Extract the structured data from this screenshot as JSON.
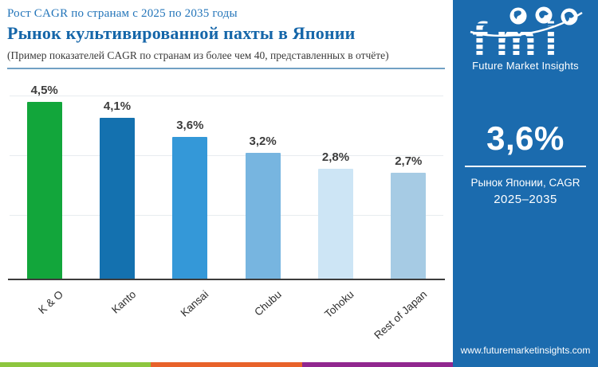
{
  "header": {
    "subtitle": "Рост CAGR по странам с 2025 по 2035 годы",
    "title": "Рынок культивированной пахты в Японии",
    "note": "(Пример показателей CAGR по странам из более чем 40, представленных в отчёте)"
  },
  "chart_data": {
    "type": "bar",
    "categories": [
      "K & O",
      "Kanto",
      "Kansai",
      "Chubu",
      "Tohoku",
      "Rest of Japan"
    ],
    "values": [
      4.5,
      4.1,
      3.6,
      3.2,
      2.8,
      2.7
    ],
    "value_labels": [
      "4,5%",
      "4,1%",
      "3,6%",
      "3,2%",
      "2,8%",
      "2,7%"
    ],
    "bar_colors": [
      "#12a63b",
      "#1471af",
      "#3498d8",
      "#77b5e0",
      "#cde5f5",
      "#a6cbe4"
    ],
    "title": "",
    "xlabel": "",
    "ylabel": "",
    "ylim": [
      0,
      4.7
    ],
    "grid": "horizontal-faint",
    "legend": "none"
  },
  "panel": {
    "background": "#1b6bae",
    "logo_text": "fmi",
    "logo_subtext": "Future Market Insights",
    "logo_globes": [
      "americas-globe-icon",
      "europe-globe-icon",
      "asia-globe-icon"
    ],
    "highlight_value": "3,6%",
    "caption_line1": "Рынок Японии, CAGR",
    "caption_line2": "2025–2035",
    "website": "www.futuremarketinsights.com"
  },
  "footer_stripe_colors": [
    "#8dc63f",
    "#e8622a",
    "#91278f"
  ]
}
